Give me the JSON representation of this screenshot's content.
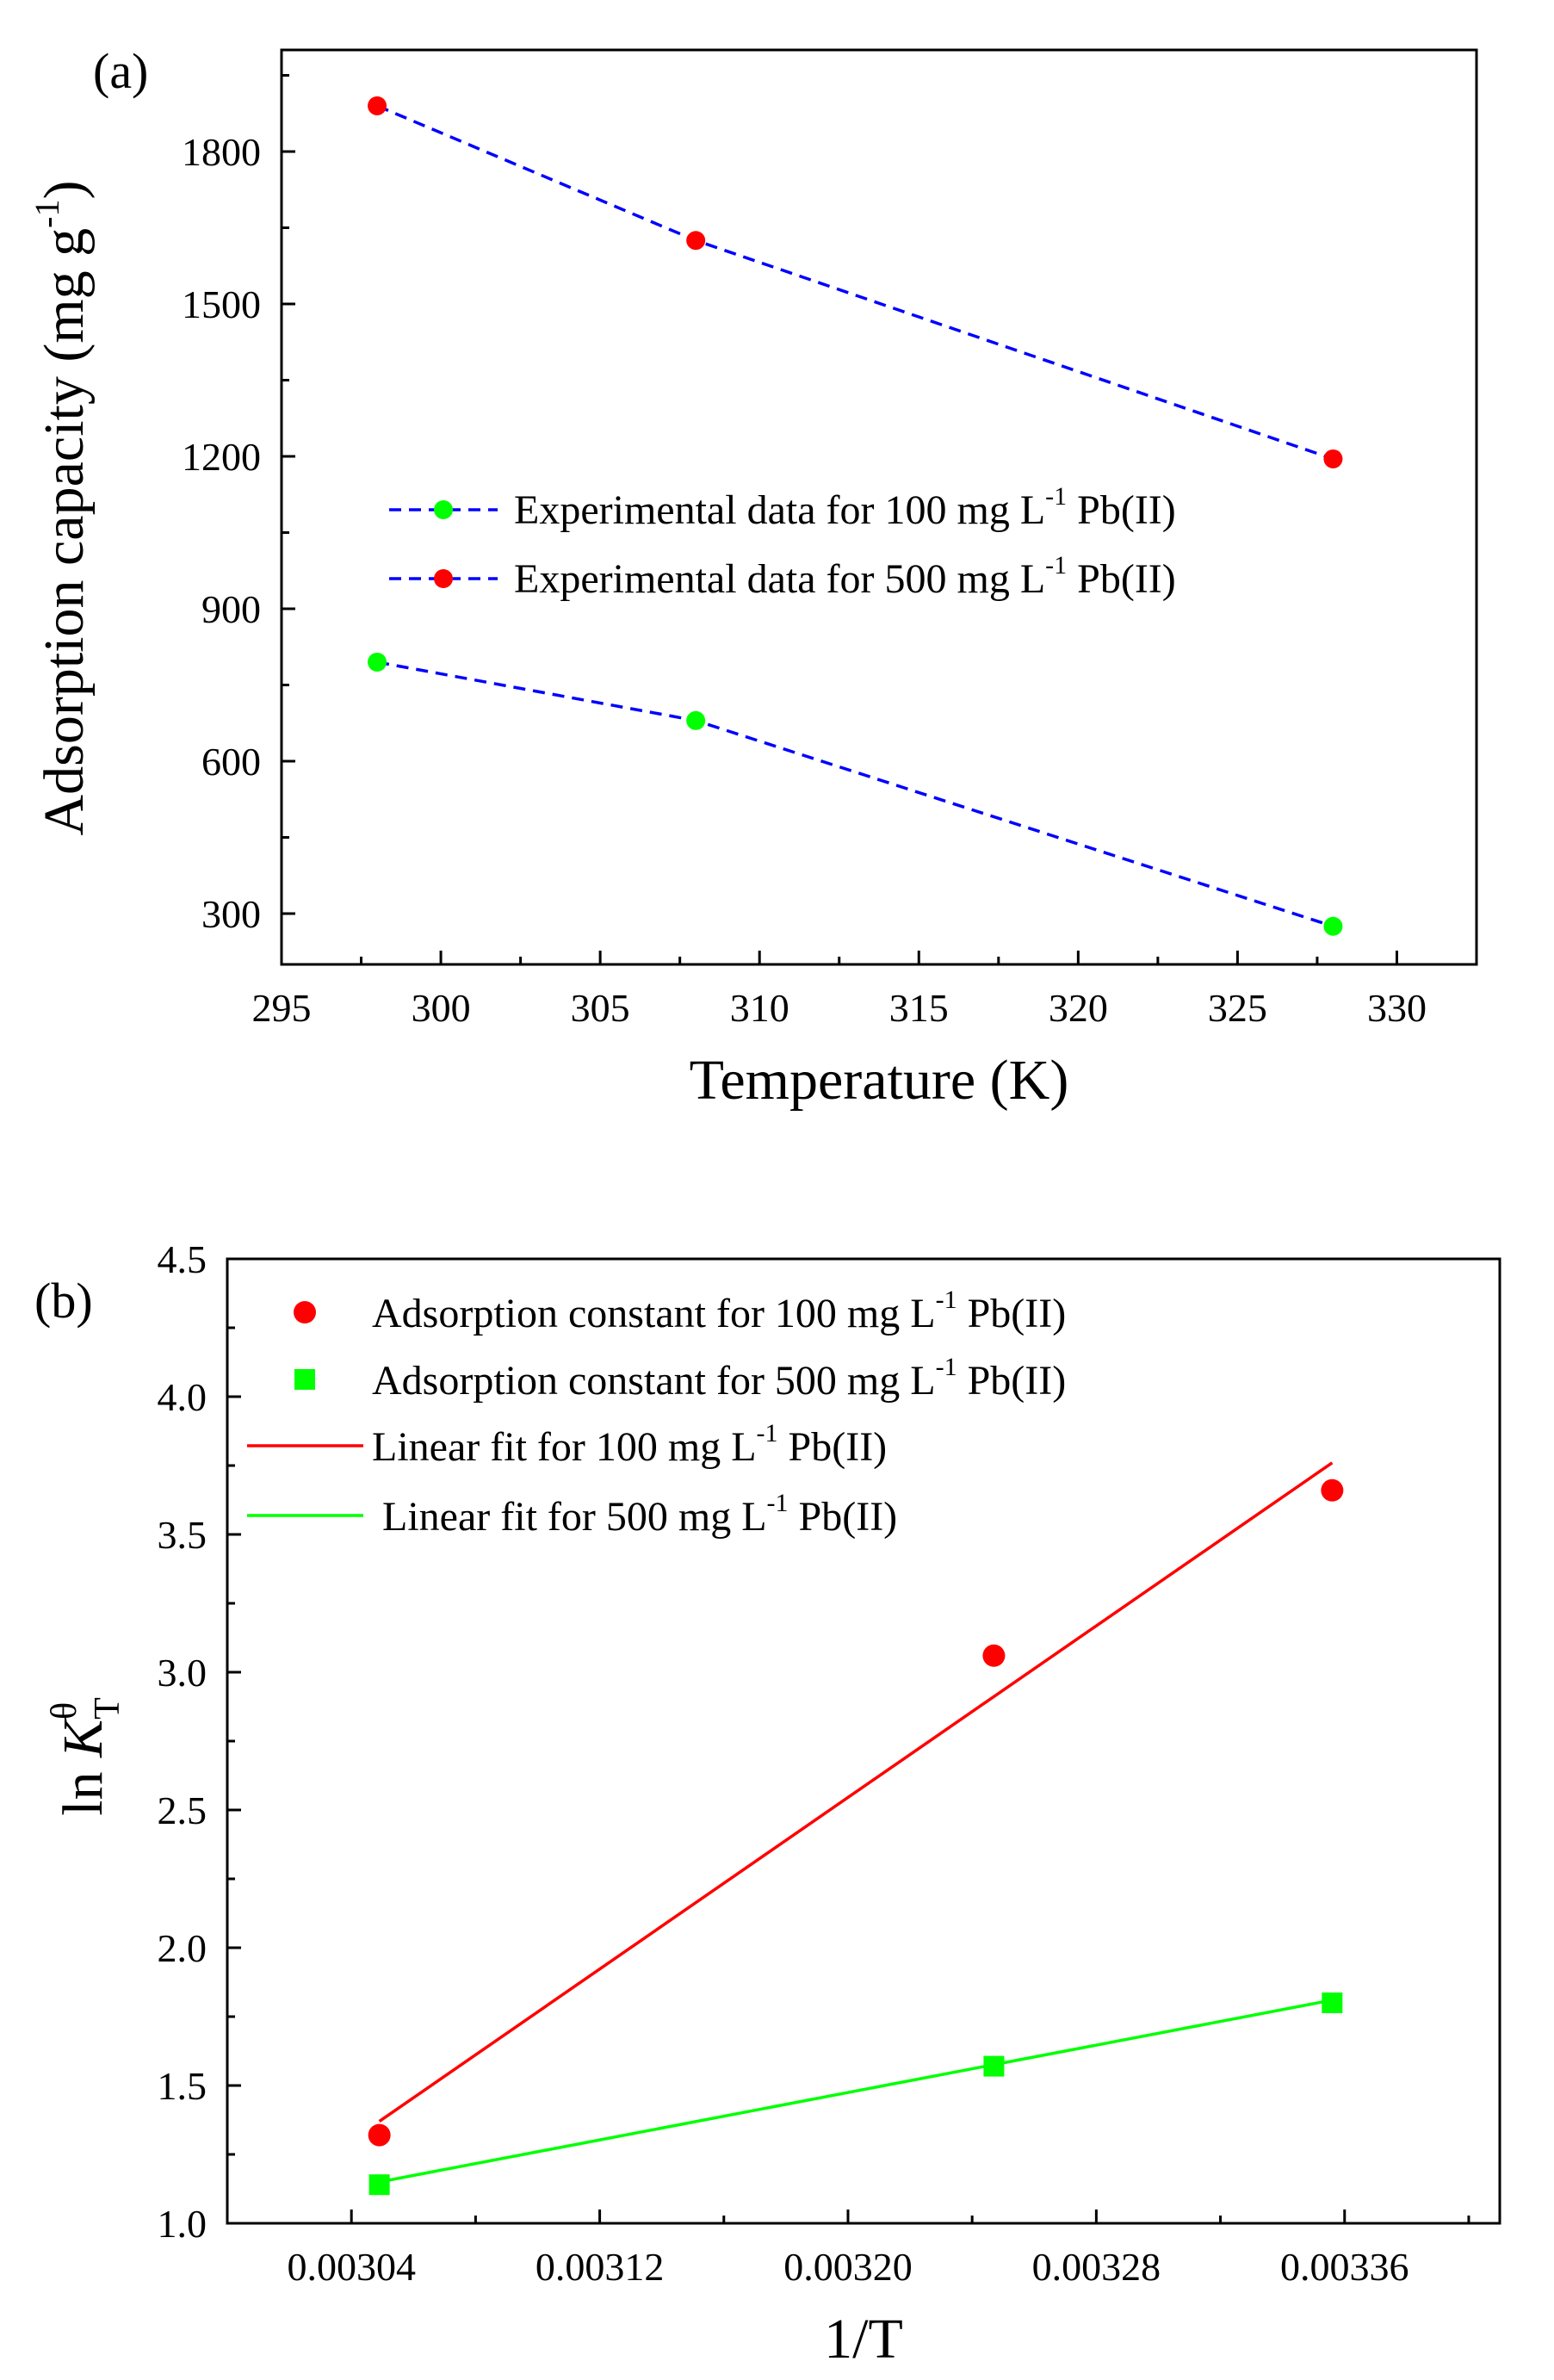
{
  "chart_data": [
    {
      "type": "line",
      "panel_label": "(a)",
      "xlabel": "Temperature (K)",
      "ylabel": "Adsorption capacity (mg g",
      "ylabel_sup": "-1",
      "ylabel_end": ")",
      "xlim": [
        295,
        332.5
      ],
      "ylim": [
        200,
        2000
      ],
      "xticks": [
        "295",
        "300",
        "305",
        "310",
        "315",
        "320",
        "325",
        "330"
      ],
      "yticks": [
        "300",
        "600",
        "900",
        "1200",
        "1500",
        "1800"
      ],
      "x": [
        298,
        308,
        328
      ],
      "series": [
        {
          "name_pre": "Experimental data for 100 mg L",
          "name_sup": "-1",
          "name_post": " Pb(II)",
          "values": [
            795,
            680,
            275
          ],
          "marker_color": "#00ff00",
          "line_color": "#0000ff",
          "line_style": "dashed"
        },
        {
          "name_pre": "Experimental data for 500 mg L",
          "name_sup": "-1",
          "name_post": " Pb(II)",
          "values": [
            1890,
            1625,
            1195
          ],
          "marker_color": "#ff0000",
          "line_color": "#0000ff",
          "line_style": "dashed"
        }
      ],
      "legend_position": "center-right"
    },
    {
      "type": "scatter",
      "panel_label": "(b)",
      "xlabel": "1/T",
      "ylabel_pre": "ln ",
      "ylabel_k": "K",
      "ylabel_sup": "θ",
      "ylabel_sub": "T",
      "xlim": [
        0.003,
        0.00341
      ],
      "ylim": [
        1.0,
        4.5
      ],
      "xticks": [
        "0.00304",
        "0.00312",
        "0.00320",
        "0.00328",
        "0.00336"
      ],
      "yticks": [
        "1.0",
        "1.5",
        "2.0",
        "2.5",
        "3.0",
        "3.5",
        "4.0",
        "4.5"
      ],
      "x": [
        0.003049,
        0.003247,
        0.003356
      ],
      "series": [
        {
          "name_pre": "Adsorption constant for 100 mg L",
          "name_sup": "-1",
          "name_post": " Pb(II)",
          "values": [
            1.32,
            3.06,
            3.66
          ],
          "marker": "circle",
          "color": "#ff0000"
        },
        {
          "name_pre": "Adsorption constant for 500 mg L",
          "name_sup": "-1",
          "name_post": " Pb(II)",
          "values": [
            1.14,
            1.57,
            1.8
          ],
          "marker": "square",
          "color": "#00ff00"
        },
        {
          "name_pre": "Linear fit for 100 mg L",
          "name_sup": "-1",
          "name_post": " Pb(II)",
          "type": "line",
          "x": [
            0.003049,
            0.003356
          ],
          "values": [
            1.37,
            3.76
          ],
          "color": "#ff0000"
        },
        {
          "name_pre": " Linear fit for 500 mg L",
          "name_sup": "-1",
          "name_post": " Pb(II)",
          "type": "line",
          "x": [
            0.003049,
            0.003356
          ],
          "values": [
            1.15,
            1.81
          ],
          "color": "#00ff00"
        }
      ],
      "legend_position": "top-left"
    }
  ]
}
